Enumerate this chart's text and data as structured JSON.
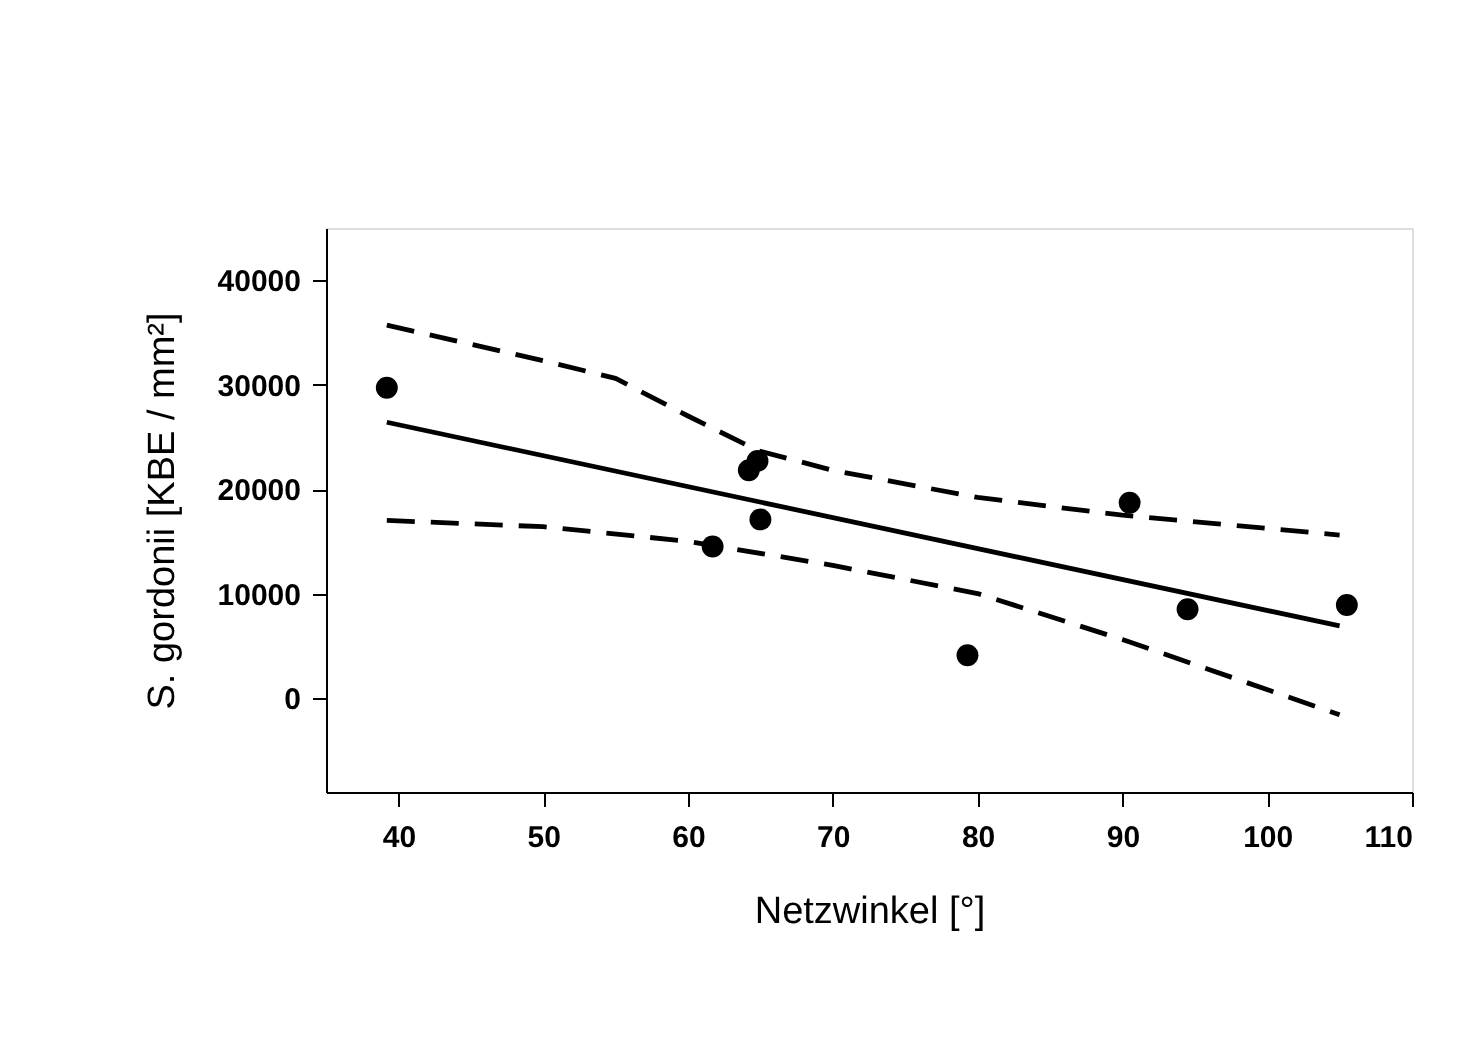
{
  "chart_data": {
    "type": "scatter",
    "xlabel": "Netzwinkel [°]",
    "ylabel": "S. gordonii [KBE / mm²]",
    "xlim": [
      35,
      110
    ],
    "xticks": [
      40,
      50,
      60,
      70,
      80,
      90,
      100,
      110
    ],
    "ylim": [
      -9000,
      45000
    ],
    "yticks": [
      0,
      10000,
      20000,
      30000,
      40000
    ],
    "grid": false,
    "series": [
      {
        "color": "#000000",
        "marker": "circle",
        "x": [
          39.2,
          61.7,
          64.2,
          64.8,
          65.0,
          79.3,
          90.5,
          94.5,
          105.5
        ],
        "values": [
          29700,
          14500,
          21800,
          22700,
          17100,
          4100,
          18700,
          8500,
          8900
        ]
      },
      {
        "type": "line",
        "color": "#000000",
        "line_style": "solid",
        "x": [
          39.2,
          105.0
        ],
        "values": [
          26400,
          6900
        ]
      },
      {
        "type": "line",
        "color": "#000000",
        "line_style": "dashed",
        "x": [
          39.2,
          50,
          55,
          60,
          64.8,
          70,
          80,
          90,
          105
        ],
        "values": [
          35700,
          32300,
          30600,
          27000,
          23700,
          21800,
          19200,
          17500,
          15600
        ]
      },
      {
        "type": "line",
        "color": "#000000",
        "line_style": "dashed",
        "x": [
          39.2,
          50,
          60,
          70,
          80,
          90,
          105
        ],
        "values": [
          17000,
          16400,
          15000,
          12700,
          10000,
          5600,
          -1600
        ]
      }
    ]
  }
}
